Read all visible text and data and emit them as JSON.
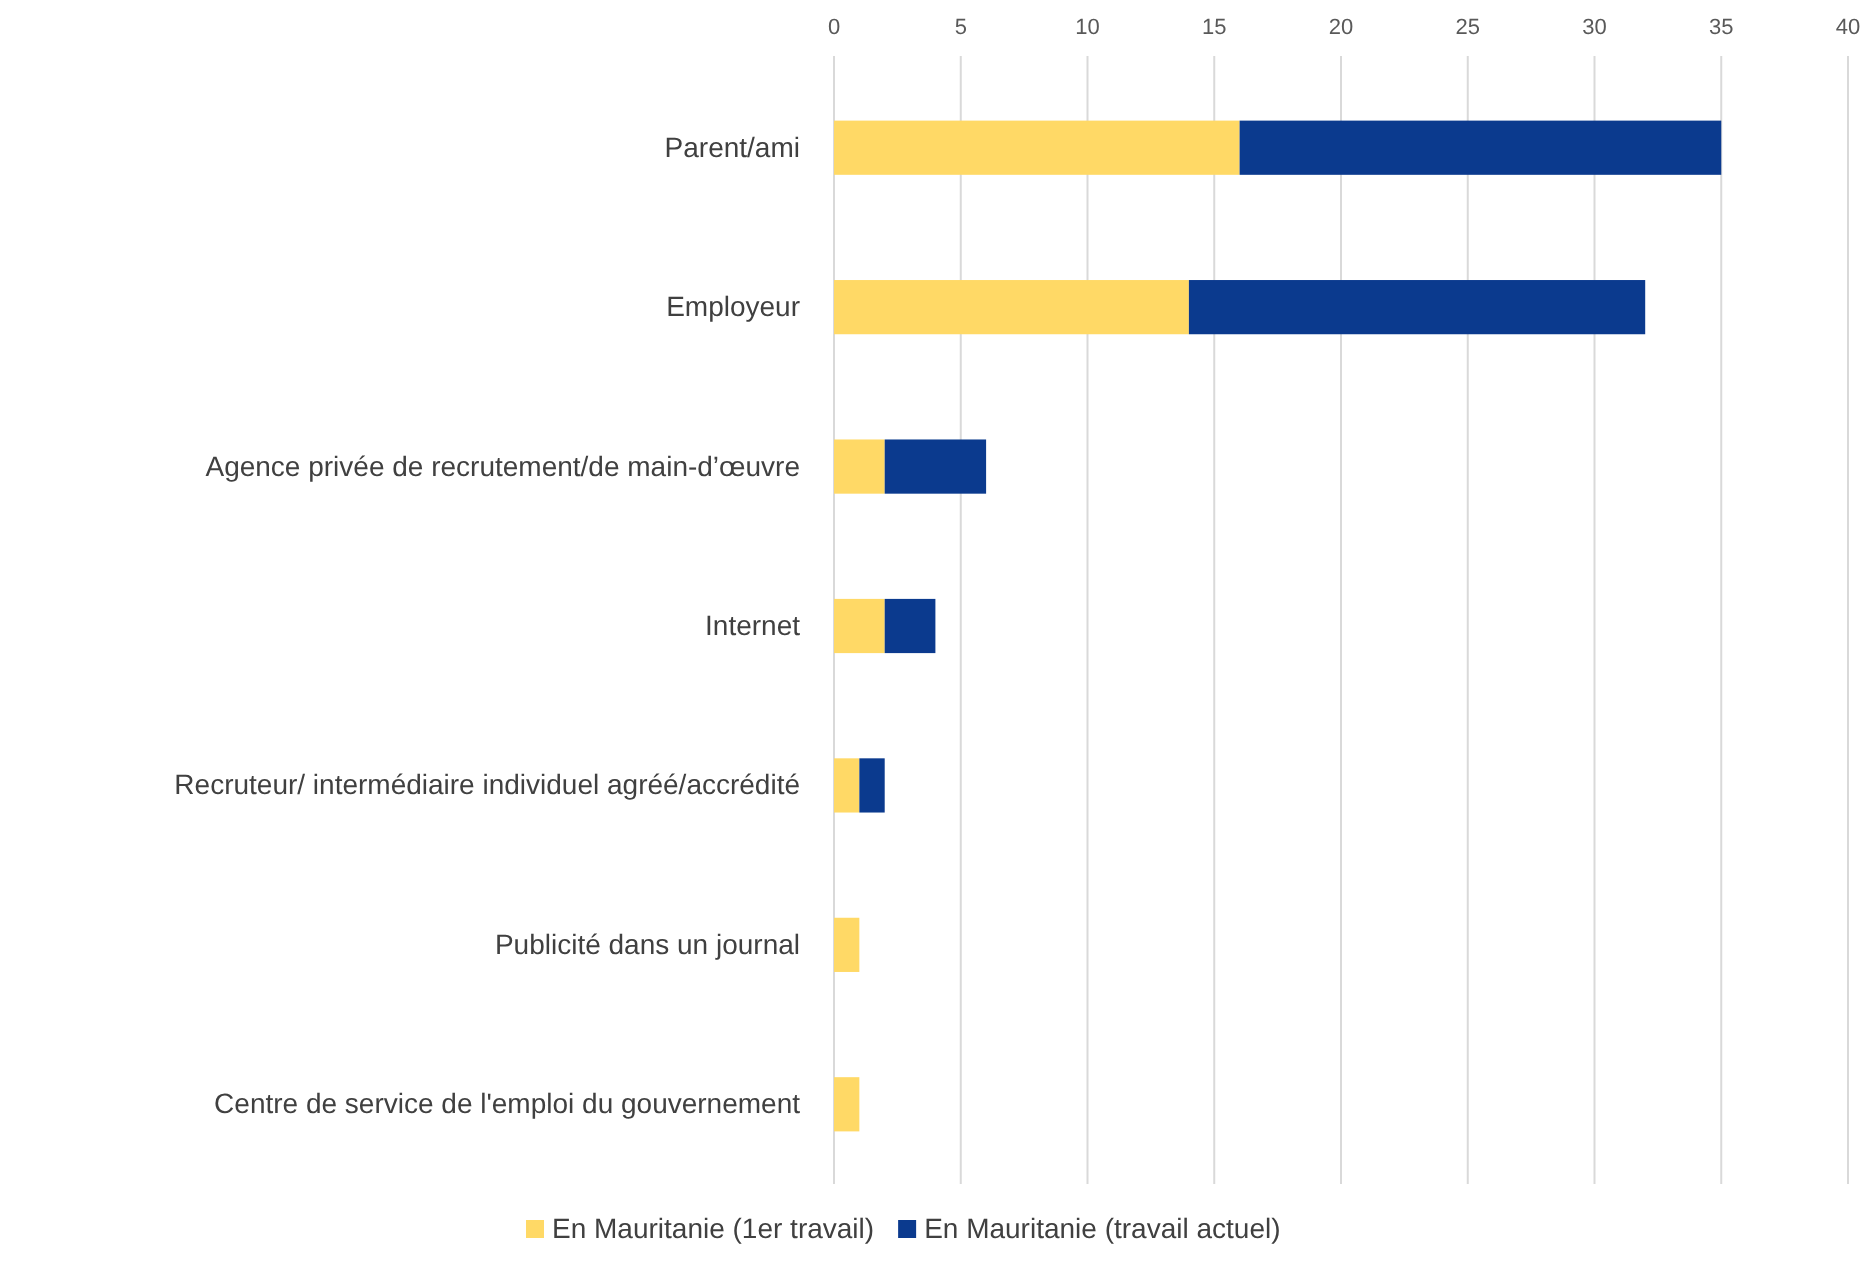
{
  "chart_data": {
    "type": "bar",
    "orientation": "horizontal",
    "stacked": true,
    "categories": [
      "Parent/ami",
      "Employeur",
      "Agence privée de recrutement/de main-d’œuvre",
      "Internet",
      "Recruteur/ intermédiaire individuel agréé/accrédité",
      "Publicité dans un journal",
      "Centre de service de l'emploi du gouvernement"
    ],
    "series": [
      {
        "name": "En Mauritanie (1er travail)",
        "color": "#ffd966",
        "values": [
          16,
          14,
          2,
          2,
          1,
          1,
          1
        ]
      },
      {
        "name": "En Mauritanie (travail actuel)",
        "color": "#0b3a8e",
        "values": [
          19,
          18,
          4,
          2,
          1,
          0,
          0
        ]
      }
    ],
    "xlim": [
      0,
      40
    ],
    "xticks": [
      0,
      5,
      10,
      15,
      20,
      25,
      30,
      35,
      40
    ],
    "grid": "x",
    "legend": "bottom"
  }
}
